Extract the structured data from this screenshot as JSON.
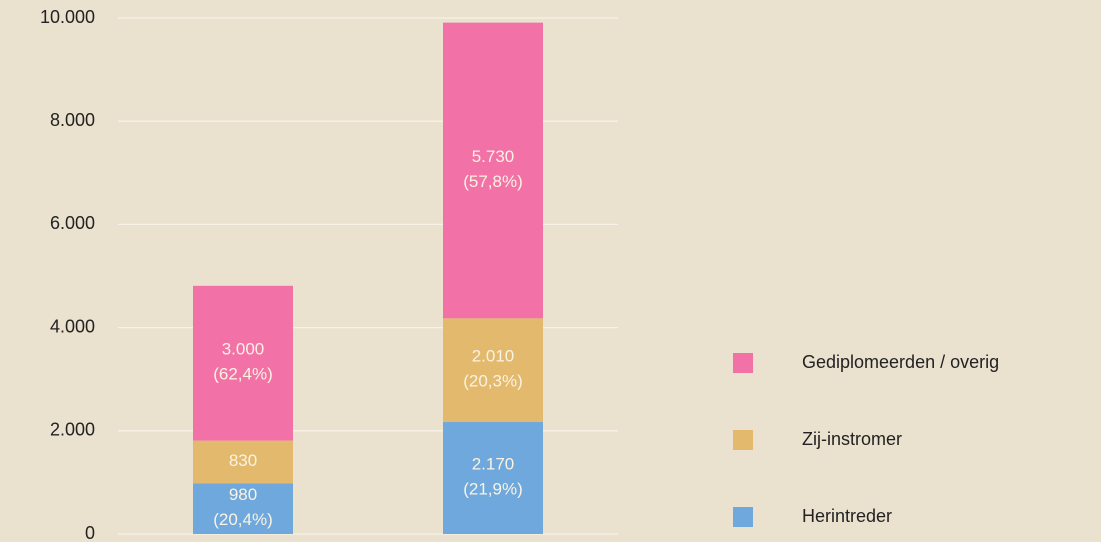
{
  "chart_data": {
    "type": "stacked-bar",
    "categories": [
      null,
      null
    ],
    "series": [
      {
        "name": "Herintreder",
        "color": "#6fa8dc",
        "values": [
          980,
          2170
        ],
        "value_labels": [
          "980 (20,4%)",
          "2.170 (21,9%)"
        ]
      },
      {
        "name": "Zij-instromer",
        "color": "#e2b96d",
        "values": [
          830,
          2010
        ],
        "value_labels": [
          "830",
          "2.010 (20,3%)"
        ]
      },
      {
        "name": "Gediplomeerden / overig",
        "color": "#f272a8",
        "values": [
          3000,
          5730
        ],
        "value_labels": [
          "3.000 (62,4%)",
          "5.730 (57,8%)"
        ]
      }
    ],
    "ylim": [
      0,
      10000
    ],
    "yticks": [
      0,
      {
        "value": 2000,
        "label": "2.000"
      },
      {
        "value": 4000,
        "label": "4.000"
      },
      {
        "value": 6000,
        "label": "6.000"
      },
      {
        "value": 8000,
        "label": "8.000"
      },
      {
        "value": 10000,
        "label": "10.000"
      }
    ],
    "grid": true,
    "legend": "right"
  }
}
